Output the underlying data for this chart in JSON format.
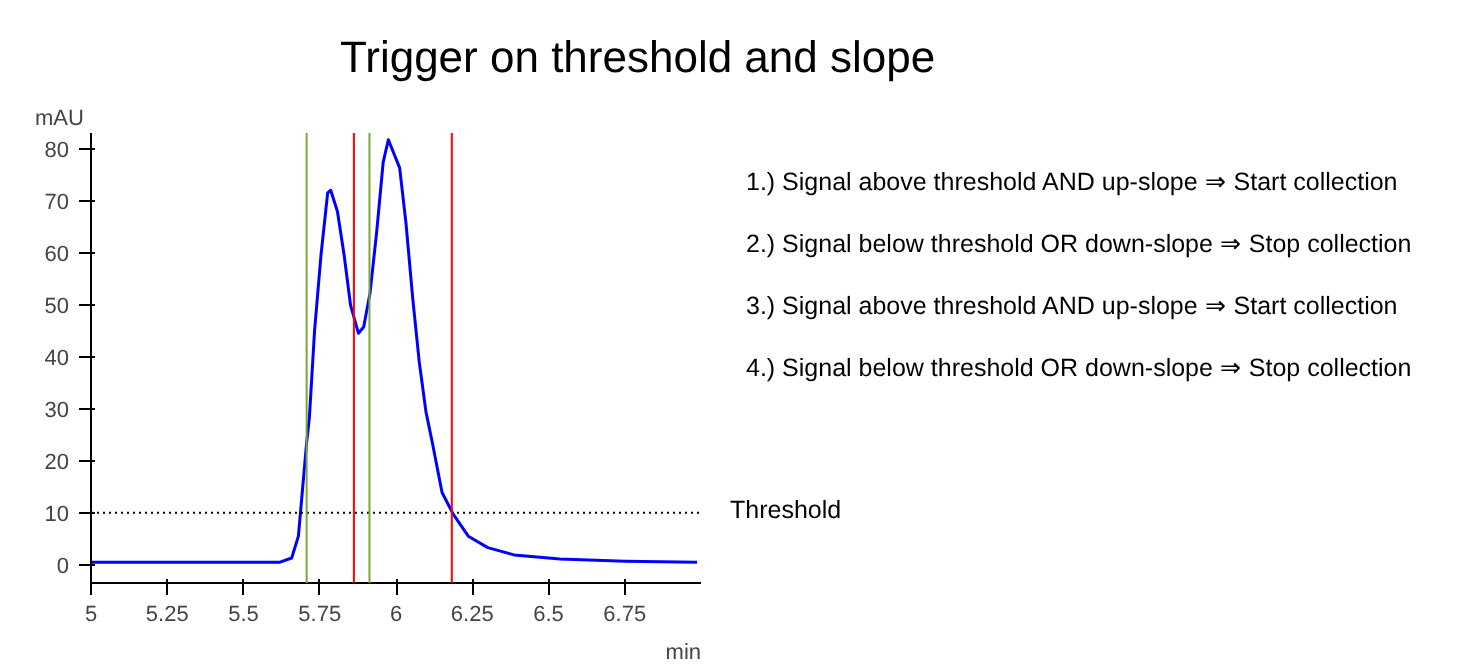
{
  "chart_data": {
    "type": "line",
    "title": "Trigger on threshold and slope",
    "xlabel": "min",
    "ylabel": "mAU",
    "x": [
      5,
      5.62,
      5.658,
      5.68,
      5.707,
      5.716,
      5.733,
      5.754,
      5.776,
      5.786,
      5.808,
      5.83,
      5.851,
      5.877,
      5.894,
      5.915,
      5.937,
      5.958,
      5.975,
      6.012,
      6.033,
      6.055,
      6.076,
      6.098,
      6.119,
      6.151,
      6.188,
      6.237,
      6.301,
      6.387,
      6.537,
      6.751,
      6.987
    ],
    "series": [
      {
        "color": "#0000ff",
        "values": [
          0.5,
          0.5,
          1.3,
          5.5,
          23.5,
          28.3,
          45,
          59.5,
          71.5,
          72,
          67.9,
          59.5,
          49.9,
          44.5,
          45.7,
          52.3,
          64.2,
          77.4,
          81.7,
          76.3,
          65.5,
          51.1,
          39.1,
          29.5,
          23.5,
          13.9,
          9.7,
          5.5,
          3.3,
          1.9,
          1.1,
          0.7,
          0.5
        ]
      }
    ],
    "xlim": [
      5,
      7
    ],
    "ylim": [
      -3.5,
      83
    ],
    "xticks": [
      5,
      5.25,
      5.5,
      5.75,
      6,
      6.25,
      6.5,
      6.75
    ],
    "yticks": [
      0,
      10,
      20,
      30,
      40,
      50,
      60,
      70,
      80
    ],
    "grid": false,
    "line_style": "solid",
    "ref_lines": [
      {
        "axis": "y",
        "value": 10,
        "label": "Threshold",
        "color": "#000000",
        "line_style": "dotted"
      },
      {
        "axis": "x",
        "value": 5.707,
        "color": "#77a832"
      },
      {
        "axis": "x",
        "value": 5.862,
        "color": "#ff0000"
      },
      {
        "axis": "x",
        "value": 5.913,
        "color": "#77a832"
      },
      {
        "axis": "x",
        "value": 6.183,
        "color": "#ff0000"
      }
    ],
    "annotations": [
      "1.) Signal above threshold AND up-slope ⇒ Start collection",
      "2.) Signal below threshold OR down-slope ⇒ Stop collection",
      "3.) Signal above threshold AND up-slope ⇒ Start collection",
      "4.) Signal below threshold OR down-slope ⇒ Stop collection"
    ]
  }
}
